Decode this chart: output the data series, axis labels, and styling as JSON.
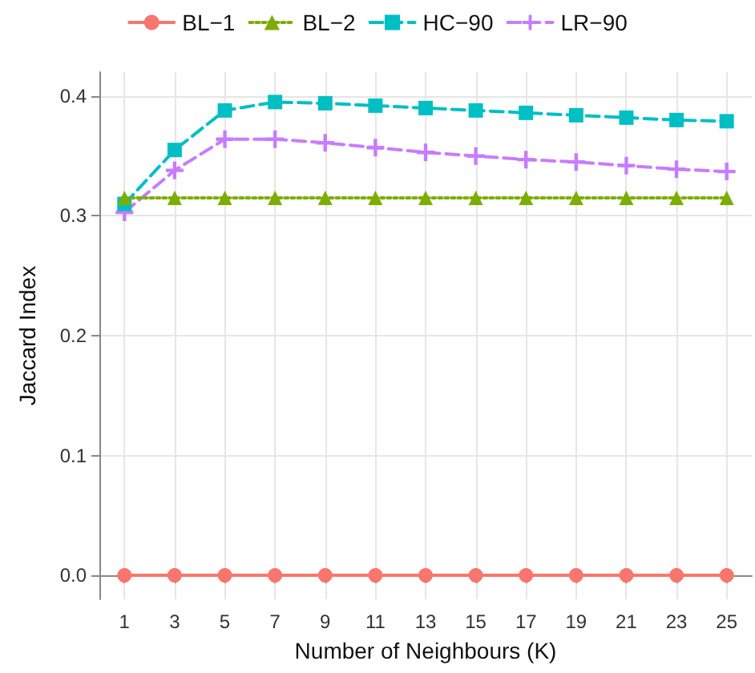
{
  "chart_data": {
    "type": "line",
    "xlabel": "Number of Neighbours (K)",
    "ylabel": "Jaccard Index",
    "x": [
      1,
      3,
      5,
      7,
      9,
      11,
      13,
      15,
      17,
      19,
      21,
      23,
      25
    ],
    "series": [
      {
        "name": "BL−1",
        "color": "#f8766d",
        "marker": "circle",
        "line_style": "solid",
        "values": [
          0,
          0,
          0,
          0,
          0,
          0,
          0,
          0,
          0,
          0,
          0,
          0,
          0
        ]
      },
      {
        "name": "BL−2",
        "color": "#7cae00",
        "marker": "triangle",
        "line_style": "dotted",
        "values": [
          0.315,
          0.315,
          0.315,
          0.315,
          0.315,
          0.315,
          0.315,
          0.315,
          0.315,
          0.315,
          0.315,
          0.315,
          0.315
        ]
      },
      {
        "name": "HC−90",
        "color": "#00bfc4",
        "marker": "square",
        "line_style": "dashed",
        "values": [
          0.31,
          0.355,
          0.388,
          0.395,
          0.394,
          0.392,
          0.39,
          0.388,
          0.386,
          0.384,
          0.382,
          0.38,
          0.379
        ]
      },
      {
        "name": "LR−90",
        "color": "#c77cff",
        "marker": "cross",
        "line_style": "dashed",
        "values": [
          0.303,
          0.338,
          0.364,
          0.364,
          0.361,
          0.357,
          0.353,
          0.35,
          0.347,
          0.345,
          0.342,
          0.339,
          0.337
        ]
      }
    ],
    "xlim": [
      0,
      26
    ],
    "xticks": [
      1,
      3,
      5,
      7,
      9,
      11,
      13,
      15,
      17,
      19,
      21,
      23,
      25
    ],
    "ylim": [
      -0.02,
      0.42
    ],
    "yticks": [
      {
        "value": 0,
        "label": "0.0"
      },
      {
        "value": 0.1,
        "label": "0.1"
      },
      {
        "value": 0.2,
        "label": "0.2"
      },
      {
        "value": 0.3,
        "label": "0.3"
      },
      {
        "value": 0.4,
        "label": "0.4"
      }
    ],
    "grid": true,
    "legend": "top"
  }
}
